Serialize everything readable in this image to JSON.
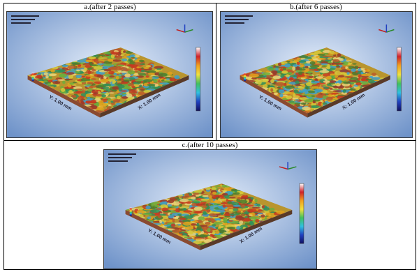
{
  "panels": [
    {
      "caption": "a.(after 2 passes)",
      "y_label": "Y: 1.00 mm",
      "x_label": "X: 1.00 mm"
    },
    {
      "caption": "b.(after 6 passes)",
      "y_label": "Y: 1.00 mm",
      "x_label": "X: 1.00 mm"
    },
    {
      "caption": "c.(after 10 passes)",
      "y_label": "Y: 1.00 mm",
      "x_label": "X: 1.00 mm"
    }
  ]
}
